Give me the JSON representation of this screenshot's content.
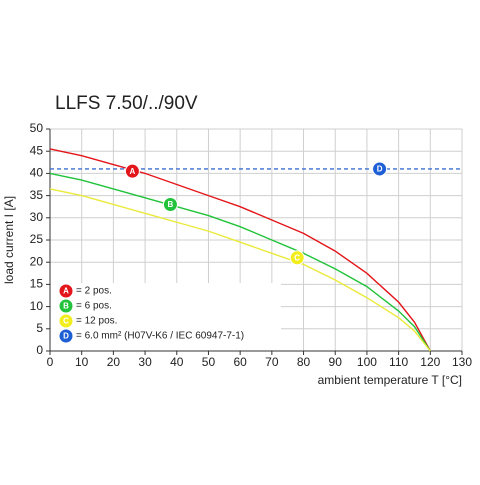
{
  "chart_data": {
    "type": "line",
    "title": "LLFS 7.50/../90V",
    "x_label": "ambient temperature T [°C]",
    "y_label": "load current I [A]",
    "xlim": [
      0,
      130
    ],
    "ylim": [
      0,
      50
    ],
    "xticks": [
      0,
      10,
      20,
      30,
      40,
      50,
      60,
      70,
      80,
      90,
      100,
      110,
      120,
      130
    ],
    "yticks": [
      0,
      5,
      10,
      15,
      20,
      25,
      30,
      35,
      40,
      45,
      50
    ],
    "grid": true,
    "legend": "lower left",
    "series": [
      {
        "name": "= 2 pos.",
        "marker": "A",
        "color": "#e3161b",
        "line_color": "#e3161b",
        "linestyle": "solid",
        "x": [
          0,
          10,
          20,
          30,
          40,
          50,
          60,
          70,
          80,
          90,
          100,
          110,
          115,
          120
        ],
        "values": [
          45.5,
          44,
          42,
          40,
          37.5,
          35,
          32.5,
          29.5,
          26.5,
          22.5,
          17.5,
          11,
          6.5,
          0
        ],
        "marker_x": 26,
        "marker_y": 40.5
      },
      {
        "name": "= 6 pos.",
        "marker": "B",
        "color": "#22c33a",
        "line_color": "#22c33a",
        "linestyle": "solid",
        "x": [
          0,
          10,
          20,
          30,
          40,
          50,
          60,
          70,
          80,
          90,
          100,
          110,
          115,
          120
        ],
        "values": [
          40,
          38.5,
          36.5,
          34.5,
          32.5,
          30.5,
          28,
          25,
          22,
          18.5,
          14.5,
          9,
          5.5,
          0
        ],
        "marker_x": 38,
        "marker_y": 33
      },
      {
        "name": "= 12 pos.",
        "marker": "C",
        "color": "#f2ee1e",
        "line_color": "#eaea3a",
        "linestyle": "solid",
        "x": [
          0,
          10,
          20,
          30,
          40,
          50,
          60,
          70,
          80,
          90,
          100,
          110,
          115,
          120
        ],
        "values": [
          36.5,
          35,
          33,
          31,
          29,
          27,
          24.5,
          22,
          19.5,
          16,
          12,
          7.5,
          4.5,
          0
        ],
        "marker_x": 78,
        "marker_y": 21
      },
      {
        "name": "= 6.0 mm² (H07V-K6 / IEC 60947-7-1)",
        "marker": "D",
        "color": "#1f5fd6",
        "line_color": "#3a6fd0",
        "linestyle": "dashed",
        "x": [
          0,
          130
        ],
        "values": [
          41,
          41
        ],
        "marker_x": 104,
        "marker_y": 41
      }
    ]
  }
}
